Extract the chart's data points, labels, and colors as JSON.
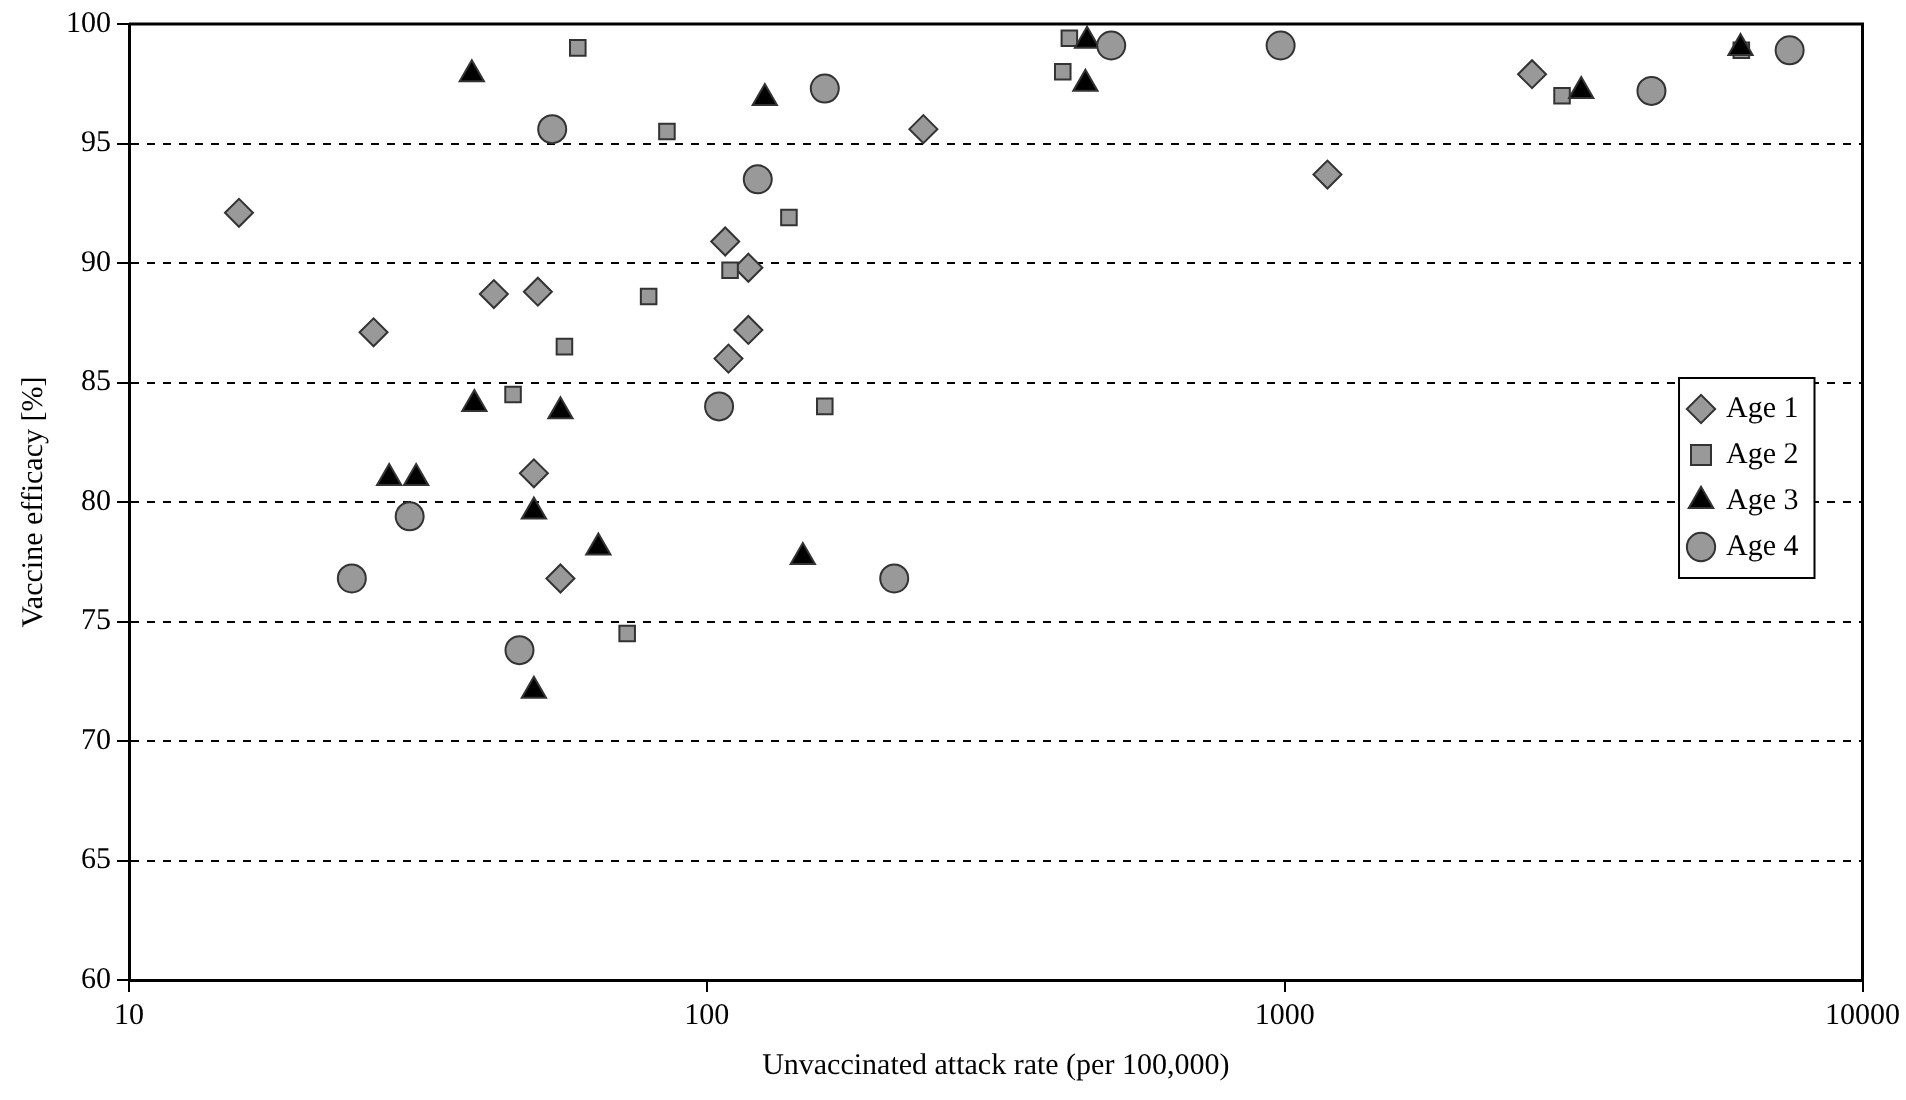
{
  "chart_data": {
    "type": "scatter",
    "xlabel": "Unvaccinated attack rate (per 100,000)",
    "ylabel": "Vaccine efficacy [%]",
    "log": "x",
    "xlim": [
      10,
      10000
    ],
    "xticks": [
      10,
      100,
      1000,
      10000
    ],
    "ylim": [
      60,
      100
    ],
    "yticks": [
      60,
      65,
      70,
      75,
      80,
      85,
      90,
      95,
      100
    ],
    "grid": "y",
    "line_style": "dashed",
    "legend": "right",
    "series": [
      {
        "name": "Age 1",
        "color": "#999999",
        "marker": "diamond",
        "x": [
          15.5,
          26.5,
          42.8,
          51,
          50.2,
          55.8,
          107.6,
          118,
          118,
          109,
          237,
          1186,
          2680
        ],
        "values": [
          92.1,
          87.1,
          88.7,
          88.8,
          81.2,
          76.8,
          90.9,
          89.8,
          87.2,
          86,
          95.6,
          93.7,
          97.9
        ]
      },
      {
        "name": "Age 2",
        "color": "#999999",
        "marker": "square",
        "x": [
          59.8,
          85.3,
          79.3,
          56.7,
          46.2,
          72.8,
          138.7,
          109.7,
          160,
          424,
          413,
          3020,
          6170
        ],
        "values": [
          99,
          95.5,
          88.6,
          86.5,
          84.5,
          74.5,
          91.9,
          89.7,
          84,
          99.4,
          98,
          97,
          98.9
        ]
      },
      {
        "name": "Age 3",
        "color": "#000000",
        "marker": "triangle",
        "x": [
          39.2,
          39.6,
          55.8,
          28.2,
          31.4,
          50.2,
          64.9,
          50.2,
          126,
          146.6,
          455,
          452,
          3260,
          6150
        ],
        "values": [
          97.9,
          84.1,
          83.8,
          81,
          81,
          79.6,
          78.1,
          72.1,
          96.9,
          77.7,
          99.3,
          97.5,
          97.2,
          99
        ]
      },
      {
        "name": "Age 4",
        "color": "#999999",
        "marker": "circle",
        "x": [
          54,
          30.6,
          24.3,
          47.4,
          160,
          122.5,
          105,
          211,
          501,
          984,
          4313,
          7480
        ],
        "values": [
          95.6,
          79.4,
          76.8,
          73.8,
          97.3,
          93.5,
          84,
          76.8,
          99.1,
          99.1,
          97.2,
          98.9
        ]
      }
    ]
  }
}
